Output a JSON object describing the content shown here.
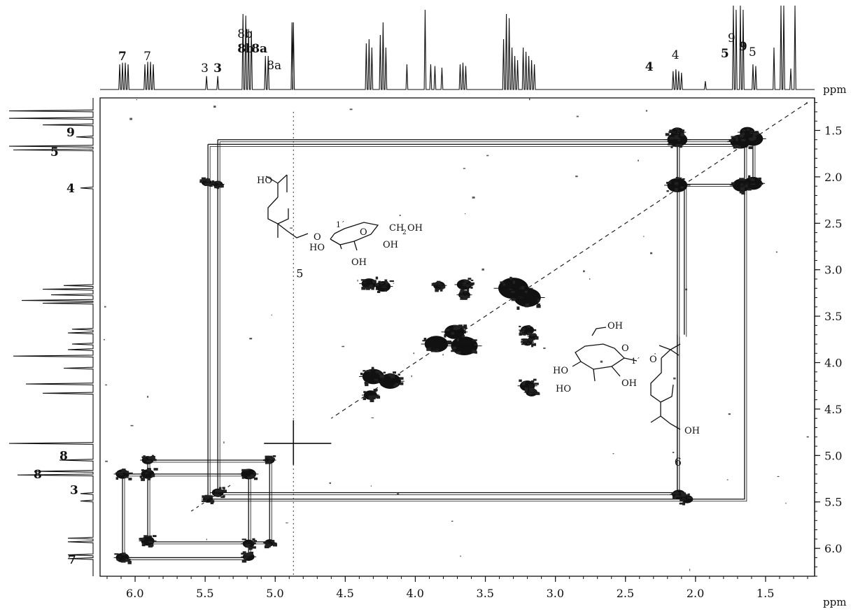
{
  "chart_data": {
    "type": "heatmap",
    "subtype": "2D NMR COSY spectrum",
    "x_axis": {
      "label": "ppm",
      "range": [
        6.25,
        1.15
      ],
      "reversed": true,
      "ticks": [
        6.0,
        5.5,
        5.0,
        4.5,
        4.0,
        3.5,
        3.0,
        2.5,
        2.0,
        1.5
      ],
      "tick_labels": [
        "6.0",
        "5.5",
        "5.0",
        "4.5",
        "4.0",
        "3.5",
        "3.0",
        "2.5",
        "2.0",
        "1.5"
      ]
    },
    "y_axis": {
      "label": "ppm",
      "range": [
        1.15,
        6.3
      ],
      "ticks": [
        1.5,
        2.0,
        2.5,
        3.0,
        3.5,
        4.0,
        4.5,
        5.0,
        5.5,
        6.0
      ],
      "tick_labels": [
        "1.5",
        "2.0",
        "2.5",
        "3.0",
        "3.5",
        "4.0",
        "4.5",
        "5.0",
        "5.5",
        "6.0"
      ]
    },
    "top_projection": {
      "peaks": [
        {
          "ppm": 6.11,
          "height": 0.3
        },
        {
          "ppm": 6.09,
          "height": 0.32
        },
        {
          "ppm": 6.07,
          "height": 0.32
        },
        {
          "ppm": 6.05,
          "height": 0.3
        },
        {
          "ppm": 5.93,
          "height": 0.3
        },
        {
          "ppm": 5.91,
          "height": 0.33
        },
        {
          "ppm": 5.89,
          "height": 0.33
        },
        {
          "ppm": 5.87,
          "height": 0.3
        },
        {
          "ppm": 5.49,
          "height": 0.16
        },
        {
          "ppm": 5.41,
          "height": 0.16
        },
        {
          "ppm": 5.23,
          "height": 0.9
        },
        {
          "ppm": 5.21,
          "height": 0.88
        },
        {
          "ppm": 5.19,
          "height": 0.72
        },
        {
          "ppm": 5.17,
          "height": 0.7
        },
        {
          "ppm": 5.07,
          "height": 0.4
        },
        {
          "ppm": 5.05,
          "height": 0.4
        },
        {
          "ppm": 4.88,
          "height": 0.8
        },
        {
          "ppm": 4.87,
          "height": 0.8
        },
        {
          "ppm": 4.35,
          "height": 0.55
        },
        {
          "ppm": 4.33,
          "height": 0.6
        },
        {
          "ppm": 4.31,
          "height": 0.5
        },
        {
          "ppm": 4.25,
          "height": 0.65
        },
        {
          "ppm": 4.23,
          "height": 0.8
        },
        {
          "ppm": 4.21,
          "height": 0.5
        },
        {
          "ppm": 4.06,
          "height": 0.3
        },
        {
          "ppm": 3.93,
          "height": 0.95
        },
        {
          "ppm": 3.89,
          "height": 0.3
        },
        {
          "ppm": 3.86,
          "height": 0.28
        },
        {
          "ppm": 3.81,
          "height": 0.26
        },
        {
          "ppm": 3.68,
          "height": 0.3
        },
        {
          "ppm": 3.66,
          "height": 0.32
        },
        {
          "ppm": 3.64,
          "height": 0.28
        },
        {
          "ppm": 3.37,
          "height": 0.6
        },
        {
          "ppm": 3.35,
          "height": 0.9
        },
        {
          "ppm": 3.33,
          "height": 0.85
        },
        {
          "ppm": 3.31,
          "height": 0.5
        },
        {
          "ppm": 3.29,
          "height": 0.4
        },
        {
          "ppm": 3.27,
          "height": 0.35
        },
        {
          "ppm": 3.23,
          "height": 0.5
        },
        {
          "ppm": 3.21,
          "height": 0.45
        },
        {
          "ppm": 3.19,
          "height": 0.4
        },
        {
          "ppm": 3.17,
          "height": 0.35
        },
        {
          "ppm": 3.15,
          "height": 0.3
        },
        {
          "ppm": 2.16,
          "height": 0.22
        },
        {
          "ppm": 2.14,
          "height": 0.24
        },
        {
          "ppm": 2.12,
          "height": 0.22
        },
        {
          "ppm": 2.1,
          "height": 0.2
        },
        {
          "ppm": 1.93,
          "height": 0.1
        },
        {
          "ppm": 1.73,
          "height": 1.0
        },
        {
          "ppm": 1.71,
          "height": 0.95
        },
        {
          "ppm": 1.68,
          "height": 1.0
        },
        {
          "ppm": 1.66,
          "height": 0.95
        },
        {
          "ppm": 1.59,
          "height": 0.3
        },
        {
          "ppm": 1.57,
          "height": 0.28
        },
        {
          "ppm": 1.44,
          "height": 0.5
        },
        {
          "ppm": 1.39,
          "height": 1.0
        },
        {
          "ppm": 1.37,
          "height": 1.0
        },
        {
          "ppm": 1.32,
          "height": 0.25
        },
        {
          "ppm": 1.29,
          "height": 1.0
        }
      ],
      "labels": [
        {
          "text": "7",
          "ppm": 6.09,
          "bold": true
        },
        {
          "text": "7",
          "ppm": 5.91,
          "bold": false
        },
        {
          "text": "3",
          "ppm": 5.5,
          "bold": false
        },
        {
          "text": "3",
          "ppm": 5.41,
          "bold": true
        },
        {
          "text": "8b",
          "ppm": 5.24,
          "bold": false,
          "row": 0
        },
        {
          "text": "8b",
          "ppm": 5.24,
          "bold": true,
          "row": 1
        },
        {
          "text": "8a",
          "ppm": 5.14,
          "bold": true
        },
        {
          "text": "8a",
          "ppm": 5.03,
          "bold": false
        },
        {
          "text": "4",
          "ppm": 2.14,
          "bold": false
        },
        {
          "text": "4",
          "ppm": 2.33,
          "bold": true
        },
        {
          "text": "9",
          "ppm": 1.74,
          "bold": false,
          "row": 0
        },
        {
          "text": "9",
          "ppm": 1.66,
          "bold": true,
          "row": 1
        },
        {
          "text": "5",
          "ppm": 1.79,
          "bold": true
        },
        {
          "text": "5",
          "ppm": 1.59,
          "bold": false
        }
      ]
    },
    "left_projection": {
      "peaks": [
        {
          "ppm": 1.29,
          "height": 1.0
        },
        {
          "ppm": 1.37,
          "height": 1.0
        },
        {
          "ppm": 1.44,
          "height": 0.6
        },
        {
          "ppm": 1.57,
          "height": 0.2
        },
        {
          "ppm": 1.67,
          "height": 1.0
        },
        {
          "ppm": 1.71,
          "height": 0.95
        },
        {
          "ppm": 2.12,
          "height": 0.15
        },
        {
          "ppm": 3.17,
          "height": 0.35
        },
        {
          "ppm": 3.21,
          "height": 0.6
        },
        {
          "ppm": 3.27,
          "height": 0.5
        },
        {
          "ppm": 3.33,
          "height": 0.85
        },
        {
          "ppm": 3.36,
          "height": 0.6
        },
        {
          "ppm": 3.64,
          "height": 0.25
        },
        {
          "ppm": 3.68,
          "height": 0.3
        },
        {
          "ppm": 3.8,
          "height": 0.25
        },
        {
          "ppm": 3.86,
          "height": 0.3
        },
        {
          "ppm": 3.93,
          "height": 0.95
        },
        {
          "ppm": 4.06,
          "height": 0.35
        },
        {
          "ppm": 4.23,
          "height": 0.8
        },
        {
          "ppm": 4.33,
          "height": 0.6
        },
        {
          "ppm": 4.87,
          "height": 1.0
        },
        {
          "ppm": 5.05,
          "height": 0.4
        },
        {
          "ppm": 5.17,
          "height": 0.7
        },
        {
          "ppm": 5.21,
          "height": 0.9
        },
        {
          "ppm": 5.41,
          "height": 0.15
        },
        {
          "ppm": 5.49,
          "height": 0.15
        },
        {
          "ppm": 5.89,
          "height": 0.3
        },
        {
          "ppm": 5.93,
          "height": 0.3
        },
        {
          "ppm": 6.07,
          "height": 0.3
        },
        {
          "ppm": 6.11,
          "height": 0.3
        }
      ],
      "labels": [
        {
          "text": "9",
          "ppm": 1.52,
          "bold": true
        },
        {
          "text": "5",
          "ppm": 1.73,
          "bold": true
        },
        {
          "text": "4",
          "ppm": 2.12,
          "bold": true
        },
        {
          "text": "8",
          "ppm": 5.0,
          "bold": true
        },
        {
          "text": "8",
          "ppm": 5.2,
          "bold": true
        },
        {
          "text": "3",
          "ppm": 5.37,
          "bold": true
        },
        {
          "text": "7",
          "ppm": 6.12,
          "bold": true
        }
      ]
    },
    "cross_peaks": [
      {
        "x": 1.59,
        "y": 1.59,
        "r": 1.2
      },
      {
        "x": 1.68,
        "y": 1.62,
        "r": 1.2
      },
      {
        "x": 2.13,
        "y": 1.6,
        "r": 1.2
      },
      {
        "x": 2.13,
        "y": 2.09,
        "r": 1.2
      },
      {
        "x": 1.67,
        "y": 2.09,
        "r": 1.1
      },
      {
        "x": 1.59,
        "y": 2.07,
        "r": 1.1
      },
      {
        "x": 1.63,
        "y": 1.52,
        "r": 0.9
      },
      {
        "x": 2.13,
        "y": 1.52,
        "r": 0.8
      },
      {
        "x": 5.49,
        "y": 2.06,
        "r": 0.6
      },
      {
        "x": 5.41,
        "y": 2.08,
        "r": 0.6
      },
      {
        "x": 2.12,
        "y": 5.42,
        "r": 0.8
      },
      {
        "x": 2.06,
        "y": 5.47,
        "r": 0.7
      },
      {
        "x": 5.41,
        "y": 5.4,
        "r": 0.7
      },
      {
        "x": 5.48,
        "y": 5.47,
        "r": 0.6
      },
      {
        "x": 4.33,
        "y": 3.15,
        "r": 0.9
      },
      {
        "x": 4.23,
        "y": 3.18,
        "r": 0.9
      },
      {
        "x": 3.83,
        "y": 3.17,
        "r": 0.7
      },
      {
        "x": 3.65,
        "y": 3.16,
        "r": 0.9
      },
      {
        "x": 3.65,
        "y": 3.27,
        "r": 0.7
      },
      {
        "x": 3.3,
        "y": 3.2,
        "r": 1.8
      },
      {
        "x": 3.2,
        "y": 3.3,
        "r": 1.6
      },
      {
        "x": 3.85,
        "y": 3.8,
        "r": 1.4
      },
      {
        "x": 3.65,
        "y": 3.82,
        "r": 1.6
      },
      {
        "x": 3.72,
        "y": 3.67,
        "r": 1.2
      },
      {
        "x": 4.3,
        "y": 4.15,
        "r": 1.3
      },
      {
        "x": 4.18,
        "y": 4.2,
        "r": 1.3
      },
      {
        "x": 4.32,
        "y": 4.35,
        "r": 0.8
      },
      {
        "x": 3.2,
        "y": 3.65,
        "r": 0.8
      },
      {
        "x": 3.2,
        "y": 3.78,
        "r": 0.6
      },
      {
        "x": 3.16,
        "y": 3.72,
        "r": 0.5
      },
      {
        "x": 3.2,
        "y": 4.25,
        "r": 0.9
      },
      {
        "x": 3.17,
        "y": 4.32,
        "r": 0.7
      },
      {
        "x": 6.09,
        "y": 5.2,
        "r": 0.8
      },
      {
        "x": 5.91,
        "y": 5.2,
        "r": 0.8
      },
      {
        "x": 5.91,
        "y": 5.05,
        "r": 0.7
      },
      {
        "x": 5.19,
        "y": 5.2,
        "r": 0.9
      },
      {
        "x": 5.04,
        "y": 5.05,
        "r": 0.6
      },
      {
        "x": 5.19,
        "y": 5.95,
        "r": 0.7
      },
      {
        "x": 5.04,
        "y": 5.94,
        "r": 0.6
      },
      {
        "x": 5.91,
        "y": 5.92,
        "r": 0.8
      },
      {
        "x": 6.09,
        "y": 6.1,
        "r": 0.8
      },
      {
        "x": 5.19,
        "y": 6.09,
        "r": 0.7
      }
    ],
    "coupling_paths": [
      [
        [
          5.48,
          1.65
        ],
        [
          1.65,
          1.65
        ],
        [
          1.65,
          5.47
        ],
        [
          5.48,
          5.47
        ],
        [
          5.48,
          1.65
        ]
      ],
      [
        [
          5.41,
          1.6
        ],
        [
          2.13,
          1.6
        ],
        [
          2.13,
          5.4
        ],
        [
          5.41,
          5.4
        ],
        [
          5.41,
          1.6
        ]
      ],
      [
        [
          2.13,
          1.6
        ],
        [
          1.59,
          1.6
        ],
        [
          1.59,
          2.08
        ],
        [
          2.13,
          2.08
        ],
        [
          2.13,
          1.6
        ]
      ],
      [
        [
          2.08,
          2.08
        ],
        [
          2.08,
          3.7
        ]
      ],
      [
        [
          2.13,
          3.7
        ],
        [
          2.13,
          5.42
        ]
      ],
      [
        [
          6.09,
          5.2
        ],
        [
          5.19,
          5.2
        ],
        [
          5.19,
          6.1
        ],
        [
          6.09,
          6.1
        ],
        [
          6.09,
          5.2
        ]
      ],
      [
        [
          5.91,
          5.05
        ],
        [
          5.04,
          5.05
        ],
        [
          5.04,
          5.93
        ],
        [
          5.91,
          5.93
        ],
        [
          5.91,
          5.05
        ]
      ]
    ],
    "structure_labels": [
      {
        "text": "5",
        "x": 4.85,
        "y": 3.08
      },
      {
        "text": "6",
        "x": 2.15,
        "y": 5.11
      }
    ]
  }
}
